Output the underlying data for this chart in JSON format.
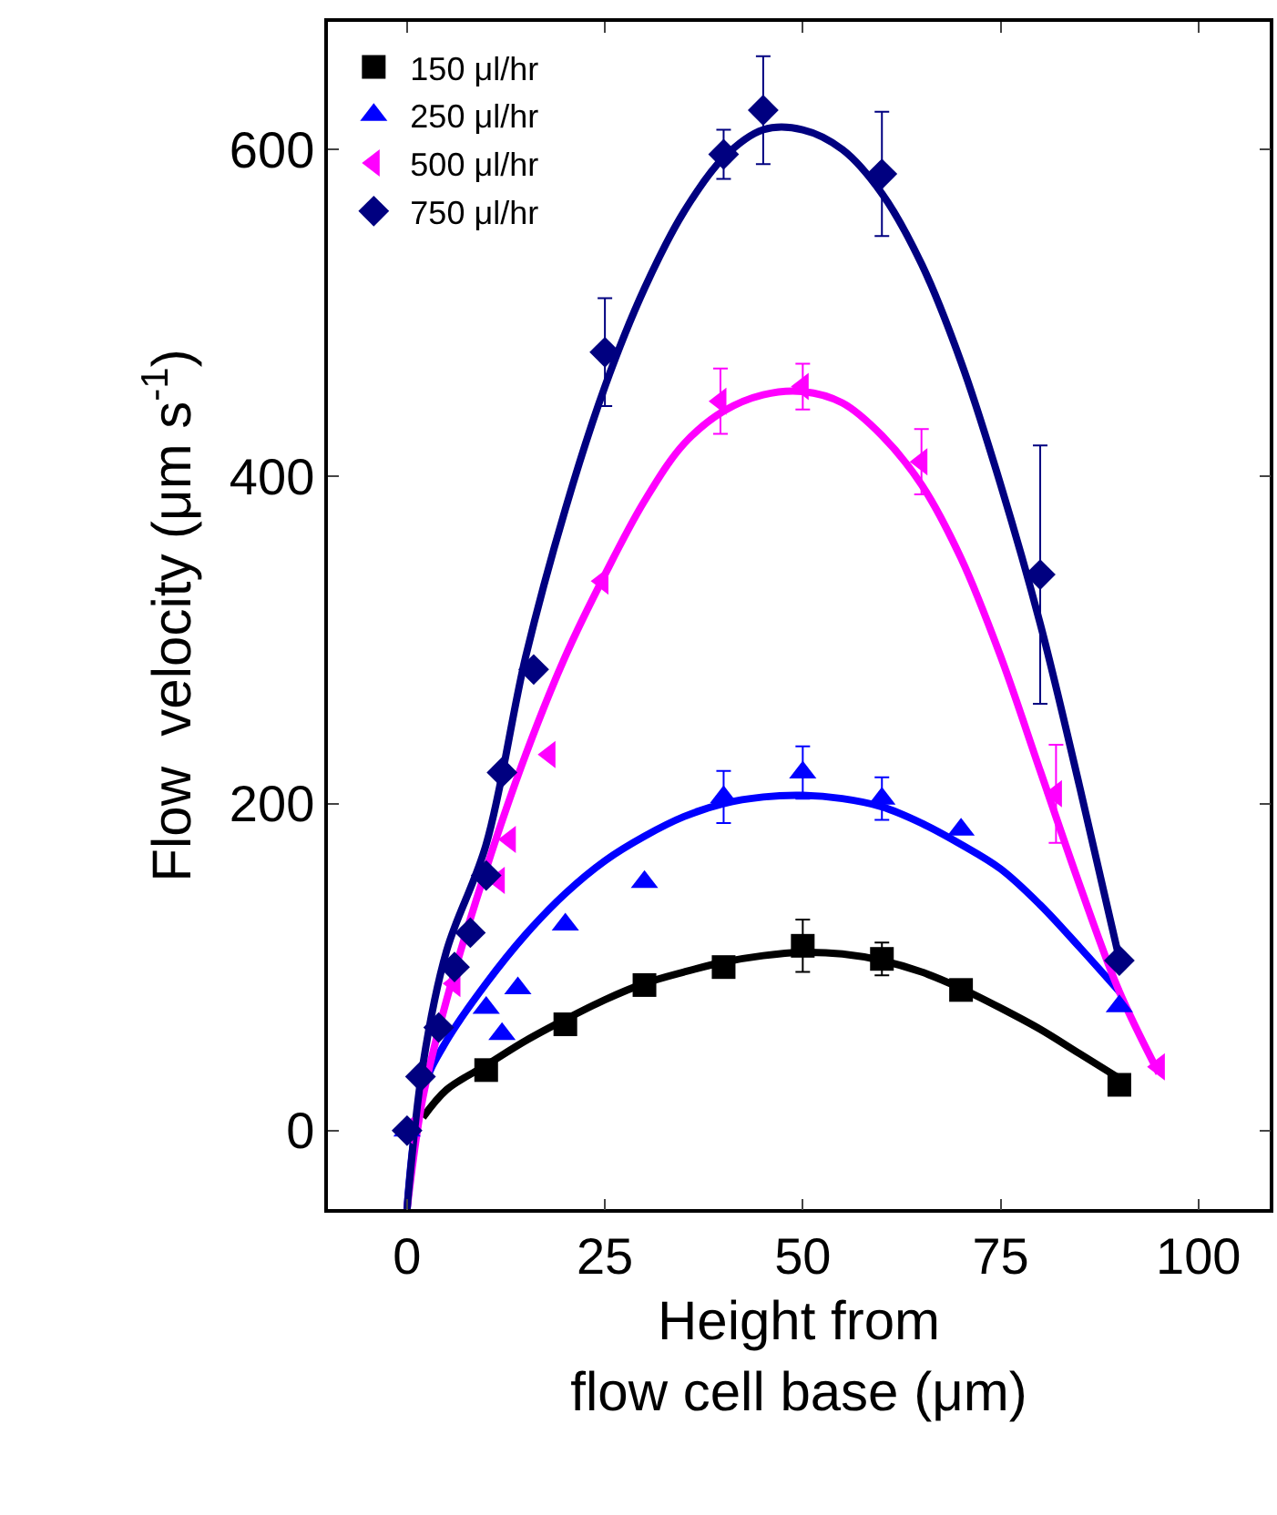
{
  "chart_data": {
    "type": "scatter",
    "xlabel": "Height from\nflow cell base (μm)",
    "ylabel": "Flow  velocity (μm s$^{-1}$)",
    "xlim": [
      -10,
      109
    ],
    "ylim": [
      -48,
      678
    ],
    "xticks": [
      0,
      25,
      50,
      75,
      100
    ],
    "yticks": [
      0,
      200,
      400,
      600
    ],
    "grid": false,
    "legend": "top left",
    "series": [
      {
        "name": "150 μl/hr",
        "marker": "square",
        "color": "#000000",
        "x": [
          10,
          20,
          30,
          40,
          50,
          60,
          70,
          90
        ],
        "values": [
          37,
          65,
          89,
          100,
          113,
          105,
          86,
          28
        ],
        "errors": [
          null,
          null,
          null,
          null,
          16,
          10,
          null,
          null
        ]
      },
      {
        "name": "250 μl/hr",
        "marker": "triangle",
        "color": "#0000ff",
        "x": [
          0,
          3,
          10,
          12,
          14,
          20,
          30,
          40,
          50,
          60,
          70,
          90
        ],
        "values": [
          0,
          null,
          75,
          59,
          87,
          126,
          152,
          204,
          219,
          203,
          184,
          76
        ],
        "errors": [
          null,
          null,
          null,
          null,
          null,
          null,
          null,
          16,
          16,
          13,
          null,
          null
        ]
      },
      {
        "name": "500 μl/hr",
        "marker": "triangle-left",
        "color": "#ff00ff",
        "x": [
          0,
          4,
          6,
          8,
          11.6,
          13,
          18,
          24.7,
          39.6,
          50,
          65,
          82,
          95
        ],
        "values": [
          0,
          null,
          90,
          null,
          153,
          178,
          230,
          336,
          446,
          455,
          409,
          206,
          39
        ],
        "errors": [
          null,
          null,
          null,
          null,
          null,
          null,
          null,
          null,
          20,
          14,
          20,
          30,
          null
        ]
      },
      {
        "name": "750 μl/hr",
        "marker": "diamond",
        "color": "#000080",
        "x": [
          0,
          1.7,
          4,
          6,
          8,
          10,
          12,
          16,
          25,
          40,
          45,
          60,
          80,
          90
        ],
        "values": [
          0,
          33,
          63,
          100,
          121,
          156,
          219,
          282,
          476,
          597,
          624,
          585,
          340,
          104
        ],
        "errors": [
          null,
          null,
          null,
          null,
          null,
          null,
          null,
          null,
          33,
          15,
          33,
          38,
          79,
          null
        ]
      },
      {
        "type": "line",
        "color": "#000000",
        "x": [
          2,
          5,
          10,
          15,
          20,
          25,
          30,
          35,
          40,
          45,
          50,
          55,
          60,
          65,
          70,
          75,
          80,
          85,
          90
        ],
        "values": [
          8,
          25,
          40,
          55,
          68,
          80,
          90,
          97,
          103,
          107,
          109,
          108,
          104,
          97,
          87,
          75,
          62,
          47,
          32
        ]
      },
      {
        "type": "line",
        "color": "#0000ff",
        "x": [
          0,
          2,
          5,
          10,
          15,
          20,
          25,
          30,
          35,
          40,
          45,
          50,
          55,
          60,
          65,
          70,
          75,
          80,
          85,
          90
        ],
        "values": [
          -48,
          25,
          55,
          90,
          120,
          145,
          165,
          180,
          192,
          200,
          204,
          205,
          203,
          198,
          188,
          175,
          160,
          138,
          112,
          85
        ]
      },
      {
        "type": "line",
        "color": "#ff00ff",
        "x": [
          0,
          2,
          5,
          10,
          15,
          20,
          25,
          30,
          35,
          40,
          45,
          50,
          55,
          60,
          65,
          70,
          75,
          80,
          85,
          90,
          95
        ],
        "values": [
          -48,
          20,
          80,
          160,
          230,
          290,
          340,
          385,
          420,
          440,
          450,
          452,
          445,
          425,
          395,
          350,
          290,
          220,
          150,
          85,
          35
        ]
      },
      {
        "type": "line",
        "color": "#000080",
        "x": [
          0,
          2,
          5,
          10,
          15,
          20,
          25,
          30,
          35,
          40,
          45,
          50,
          55,
          60,
          65,
          70,
          75,
          80,
          85,
          90
        ],
        "values": [
          -48,
          40,
          110,
          175,
          290,
          380,
          455,
          515,
          562,
          595,
          612,
          612,
          600,
          573,
          530,
          470,
          395,
          310,
          210,
          105
        ]
      }
    ]
  }
}
